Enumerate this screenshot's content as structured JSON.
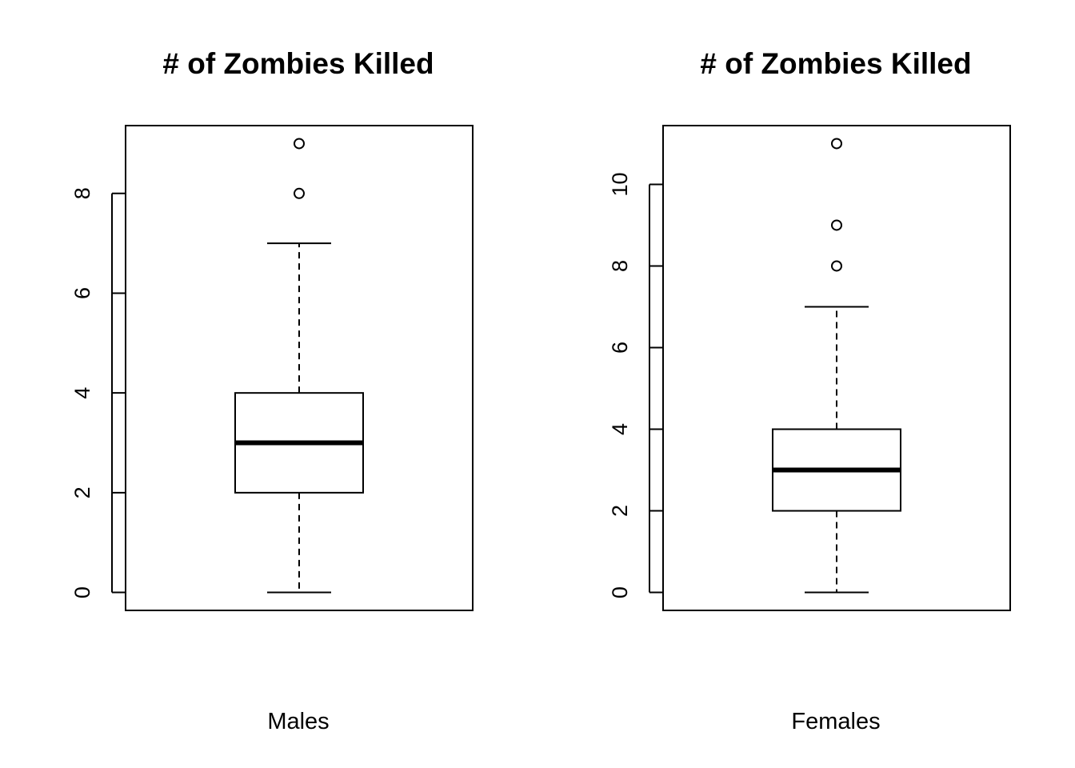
{
  "chart_data": [
    {
      "type": "box",
      "title": "# of Zombies Killed",
      "xlabel": "Males",
      "ylabel": "",
      "ylim": [
        -0.36,
        9.36
      ],
      "yticks": [
        0,
        2,
        4,
        6,
        8
      ],
      "ytick_labels": [
        "0",
        "2",
        "4",
        "6",
        "8"
      ],
      "box": {
        "whisker_low": 0,
        "q1": 2,
        "median": 3,
        "q3": 4,
        "whisker_high": 7
      },
      "outliers": [
        8,
        9
      ],
      "grid": false
    },
    {
      "type": "box",
      "title": "# of Zombies Killed",
      "xlabel": "Females",
      "ylabel": "",
      "ylim": [
        -0.44,
        11.44
      ],
      "yticks": [
        0,
        2,
        4,
        6,
        8,
        10
      ],
      "ytick_labels": [
        "0",
        "2",
        "4",
        "6",
        "8",
        "10"
      ],
      "box": {
        "whisker_low": 0,
        "q1": 2,
        "median": 3,
        "q3": 4,
        "whisker_high": 7
      },
      "outliers": [
        8,
        9,
        11
      ],
      "grid": false
    }
  ]
}
